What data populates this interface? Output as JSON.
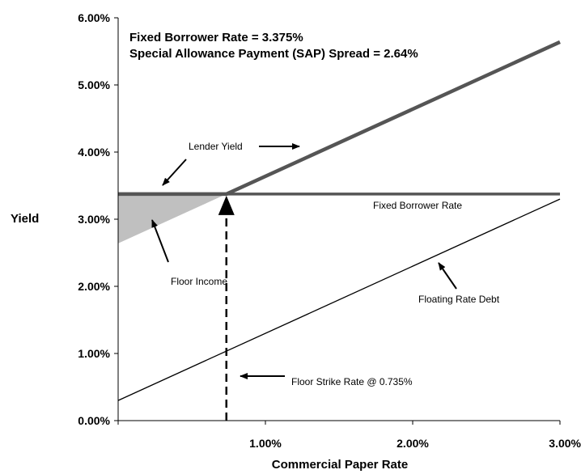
{
  "chart_data": {
    "type": "line",
    "title": "",
    "notes": [
      "Fixed Borrower Rate = 3.375%",
      "Special Allowance Payment (SAP) Spread = 2.64%"
    ],
    "xlabel": "Commercial Paper Rate",
    "ylabel": "Yield",
    "xlim": [
      0,
      3
    ],
    "ylim": [
      0,
      6
    ],
    "x_ticks": [
      "1.00%",
      "2.00%",
      "3.00%"
    ],
    "y_ticks": [
      "0.00%",
      "1.00%",
      "2.00%",
      "3.00%",
      "4.00%",
      "5.00%",
      "6.00%"
    ],
    "grid": false,
    "series": [
      {
        "name": "Lender Yield",
        "points": [
          [
            0,
            3.375
          ],
          [
            0.735,
            3.375
          ],
          [
            3,
            5.64
          ]
        ]
      },
      {
        "name": "Fixed Borrower Rate",
        "points": [
          [
            0,
            3.375
          ],
          [
            3,
            3.375
          ]
        ]
      },
      {
        "name": "Floating Rate Debt",
        "points": [
          [
            0,
            0.3
          ],
          [
            3,
            3.3
          ]
        ]
      }
    ],
    "shaded_region": {
      "name": "Floor Income",
      "points": [
        [
          0,
          3.375
        ],
        [
          0.735,
          3.375
        ],
        [
          0,
          2.64
        ]
      ]
    },
    "annotations": [
      {
        "text": "Lender Yield",
        "x": 0.7,
        "y": 4.05
      },
      {
        "text": "Fixed Borrower Rate",
        "x": 1.74,
        "y": 3.2
      },
      {
        "text": "Floor Income",
        "x": 0.38,
        "y": 2.1
      },
      {
        "text": "Floating Rate Debt",
        "x": 2.04,
        "y": 1.8
      },
      {
        "text": "Floor Strike Rate @ 0.735%",
        "x": 1.16,
        "y": 0.6
      }
    ],
    "floor_strike_x": 0.735
  }
}
